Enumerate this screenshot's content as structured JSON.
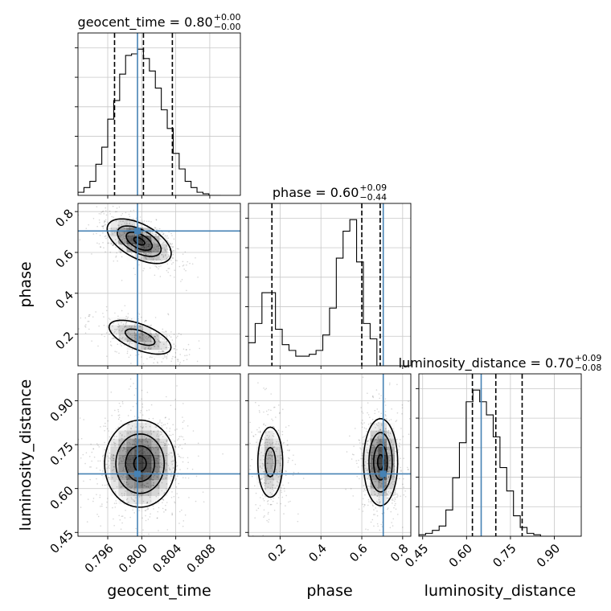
{
  "chart_data": {
    "type": "corner",
    "parameters": [
      "geocent_time",
      "phase",
      "luminosity_distance"
    ],
    "truths": [
      0.7995,
      0.705,
      0.65
    ],
    "axis_ranges": {
      "geocent_time": [
        0.7925,
        0.8116
      ],
      "phase": [
        0.045,
        0.84
      ],
      "luminosity_distance": [
        0.437,
        0.992
      ]
    },
    "ticks": {
      "geocent_time": {
        "values": [
          0.796,
          0.8,
          0.804,
          0.808
        ],
        "labels": [
          "0.796",
          "0.800",
          "0.804",
          "0.808"
        ]
      },
      "phase": {
        "values": [
          0.2,
          0.4,
          0.6,
          0.8
        ],
        "labels": [
          "0.2",
          "0.4",
          "0.6",
          "0.8"
        ]
      },
      "luminosity_distance": {
        "values": [
          0.45,
          0.6,
          0.75,
          0.9
        ],
        "labels": [
          "0.45",
          "0.60",
          "0.75",
          "0.90"
        ]
      }
    },
    "titles": [
      {
        "param": "geocent_time",
        "base": "geocent_time = 0.80",
        "plus": "+0.00",
        "minus": "−0.00"
      },
      {
        "param": "phase",
        "base": "phase = 0.60",
        "plus": "+0.09",
        "minus": "−0.44"
      },
      {
        "param": "luminosity_distance",
        "base": "luminosity_distance = 0.70",
        "plus": "+0.09",
        "minus": "−0.08"
      }
    ],
    "quantiles": {
      "geocent_time": [
        0.7968,
        0.8002,
        0.8036
      ],
      "phase": [
        0.16,
        0.6,
        0.69
      ],
      "luminosity_distance": [
        0.62,
        0.7,
        0.79
      ]
    },
    "histograms": {
      "geocent_time": {
        "bin_start": 0.7925,
        "bin_width": 0.0007,
        "counts": [
          2,
          5,
          9,
          20,
          31,
          49,
          61,
          78,
          90,
          91,
          94,
          88,
          80,
          69,
          55,
          43,
          27,
          17,
          9,
          5,
          2,
          1,
          0,
          0
        ]
      },
      "phase": {
        "bin_start": 0.045,
        "bin_width": 0.0331,
        "counts": [
          12,
          22,
          38,
          38,
          19,
          11,
          8,
          5,
          5,
          6,
          8,
          16,
          30,
          56,
          70,
          76,
          54,
          22,
          14,
          0,
          0,
          0,
          0,
          0
        ]
      },
      "luminosity_distance": {
        "bin_start": 0.437,
        "bin_width": 0.0231,
        "counts": [
          1,
          2,
          4,
          7,
          18,
          40,
          64,
          92,
          100,
          92,
          83,
          68,
          47,
          31,
          14,
          6,
          2,
          1,
          0,
          0,
          0,
          0,
          0,
          0
        ]
      }
    },
    "density_modes": [
      {
        "x": "geocent_time",
        "y": "phase",
        "modes": [
          {
            "cx": 0.7997,
            "cy": 0.655,
            "sx": 0.0019,
            "sy": 0.055,
            "rho": -0.55,
            "w": 1.0
          },
          {
            "cx": 0.7998,
            "cy": 0.185,
            "sx": 0.0022,
            "sy": 0.05,
            "rho": -0.6,
            "w": 0.55
          }
        ]
      },
      {
        "x": "geocent_time",
        "y": "luminosity_distance",
        "modes": [
          {
            "cx": 0.7998,
            "cy": 0.685,
            "sx": 0.0021,
            "sy": 0.075,
            "rho": 0.0,
            "w": 1.0
          }
        ]
      },
      {
        "x": "phase",
        "y": "luminosity_distance",
        "modes": [
          {
            "cx": 0.692,
            "cy": 0.69,
            "sx": 0.042,
            "sy": 0.075,
            "rho": 0.0,
            "w": 1.0
          },
          {
            "cx": 0.152,
            "cy": 0.69,
            "sx": 0.038,
            "sy": 0.075,
            "rho": 0.0,
            "w": 0.5
          }
        ]
      }
    ],
    "grid": true,
    "colors": {
      "truth": "#4682b4",
      "hist": "#000000",
      "grid": "#c8c8c8",
      "density": "#000000"
    }
  }
}
